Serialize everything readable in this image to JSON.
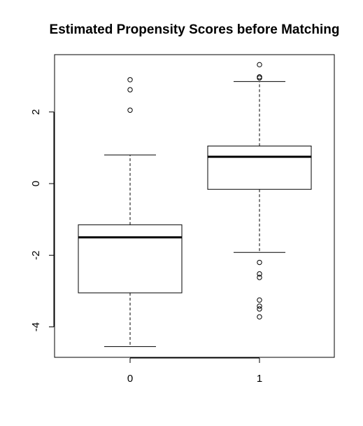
{
  "chart_data": {
    "type": "boxplot",
    "title": "Estimated Propensity Scores before Matching",
    "xlabel": "",
    "ylabel": "",
    "categories": [
      "0",
      "1"
    ],
    "ylim": [
      -4.85,
      3.6
    ],
    "y_ticks": [
      -4,
      -2,
      0,
      2
    ],
    "y_tick_labels": [
      "-4",
      "-2",
      "0",
      "2"
    ],
    "boxes": [
      {
        "group": "0",
        "whisker_low": -4.55,
        "q1": -3.05,
        "median": -1.5,
        "q3": -1.15,
        "whisker_high": 0.8,
        "outliers": [
          2.9,
          2.62,
          2.05
        ]
      },
      {
        "group": "1",
        "whisker_low": -1.92,
        "q1": -0.16,
        "median": 0.75,
        "q3": 1.05,
        "whisker_high": 2.85,
        "outliers": [
          3.32,
          2.98,
          2.95,
          -2.2,
          -2.52,
          -2.62,
          -3.25,
          -3.42,
          -3.5,
          -3.72
        ]
      }
    ],
    "grid": false,
    "legend": "none"
  }
}
